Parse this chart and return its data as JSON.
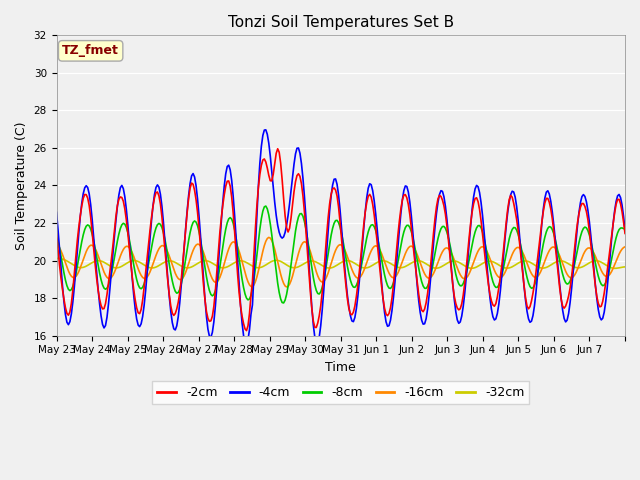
{
  "title": "Tonzi Soil Temperatures Set B",
  "xlabel": "Time",
  "ylabel": "Soil Temperature (C)",
  "ylim": [
    16,
    32
  ],
  "yticks": [
    16,
    18,
    20,
    22,
    24,
    26,
    28,
    30,
    32
  ],
  "background_color": "#f0f0f0",
  "plot_bg_color": "#f0f0f0",
  "legend_label": "TZ_fmet",
  "legend_box_color": "#ffffcc",
  "legend_box_edge": "#aaaaaa",
  "legend_text_color": "#880000",
  "series_colors": {
    "-2cm": "#ff0000",
    "-4cm": "#0000ff",
    "-8cm": "#00cc00",
    "-16cm": "#ff8800",
    "-32cm": "#cccc00"
  },
  "x_tick_labels": [
    "May 23",
    "May 24",
    "May 25",
    "May 26",
    "May 27",
    "May 28",
    "May 29",
    "May 30",
    "May 31",
    "Jun 1",
    "Jun 2",
    "Jun 3",
    "Jun 4",
    "Jun 5",
    "Jun 6",
    "Jun 7"
  ]
}
